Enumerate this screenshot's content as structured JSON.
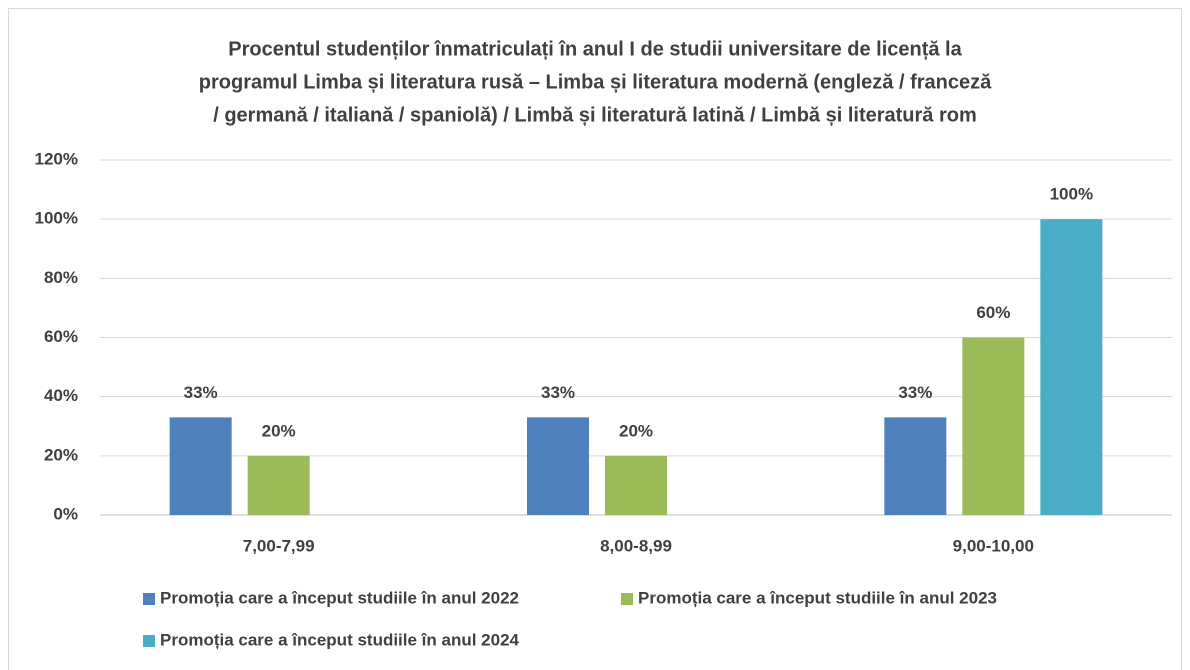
{
  "chart_data": {
    "type": "bar",
    "title": [
      "Procentul studenților înmatriculați în anul I de studii universitare de licență la",
      "programul Limba și literatura rusă – Limba și literatura modernă (engleză / franceză",
      "/ germană / italiană / spaniolă) / Limbă și literatură latină / Limbă și literatură rom"
    ],
    "categories": [
      "7,00-7,99",
      "8,00-8,99",
      "9,00-10,00"
    ],
    "series": [
      {
        "name": "Promoția care a început studiile în anul 2022",
        "color": "#4f81bd",
        "values": [
          33,
          33,
          33
        ],
        "value_labels": [
          "33%",
          "33%",
          "33%"
        ]
      },
      {
        "name": "Promoția care a început studiile în anul 2023",
        "color": "#9bbb59",
        "values": [
          20,
          20,
          60
        ],
        "value_labels": [
          "20%",
          "20%",
          "60%"
        ]
      },
      {
        "name": "Promoția care a început studiile în anul 2024",
        "color": "#4bacc6",
        "values": [
          null,
          null,
          100
        ],
        "value_labels": [
          null,
          null,
          "100%"
        ]
      }
    ],
    "ylim": [
      0,
      120
    ],
    "yticks": [
      {
        "value": 0,
        "label": "0%"
      },
      {
        "value": 20,
        "label": "20%"
      },
      {
        "value": 40,
        "label": "40%"
      },
      {
        "value": 60,
        "label": "60%"
      },
      {
        "value": 80,
        "label": "80%"
      },
      {
        "value": 100,
        "label": "100%"
      },
      {
        "value": 120,
        "label": "120%"
      }
    ],
    "grid": true,
    "legend": "bottom"
  }
}
